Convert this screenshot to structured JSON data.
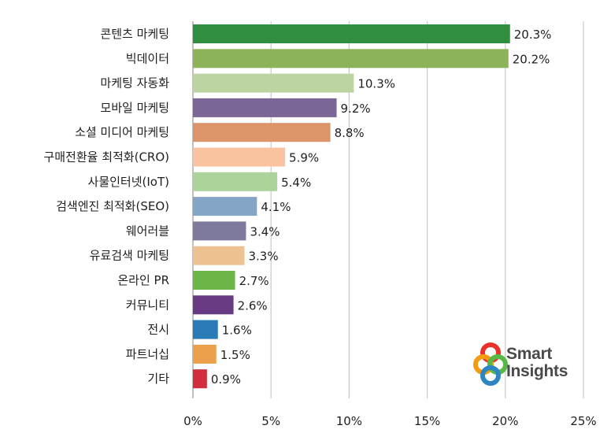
{
  "chart_data": {
    "type": "bar",
    "orientation": "horizontal",
    "categories": [
      "콘텐츠 마케팅",
      "빅데이터",
      "마케팅 자동화",
      "모바일 마케팅",
      "소셜 미디어 마케팅",
      "구매전환율 최적화(CRO)",
      "사물인터넷(IoT)",
      "검색엔진 최적화(SEO)",
      "웨어러블",
      "유료검색 마케팅",
      "온라인 PR",
      "커뮤니티",
      "전시",
      "파트너십",
      "기타"
    ],
    "values": [
      20.3,
      20.2,
      10.3,
      9.2,
      8.8,
      5.9,
      5.4,
      4.1,
      3.4,
      3.3,
      2.7,
      2.6,
      1.6,
      1.5,
      0.9
    ],
    "value_labels": [
      "20.3%",
      "20.2%",
      "10.3%",
      "9.2%",
      "8.8%",
      "5.9%",
      "5.4%",
      "4.1%",
      "3.4%",
      "3.3%",
      "2.7%",
      "2.6%",
      "1.6%",
      "1.5%",
      "0.9%"
    ],
    "colors": [
      "#2f8f3f",
      "#8db35a",
      "#bcd3a2",
      "#7b6797",
      "#dc9469",
      "#f9c39f",
      "#acd39a",
      "#85a5c6",
      "#7e7a9e",
      "#eec193",
      "#6cb548",
      "#683b82",
      "#2b7bb8",
      "#eda04c",
      "#d12d3d"
    ],
    "xlim": [
      0,
      25
    ],
    "x_ticks": [
      0,
      5,
      10,
      15,
      20,
      25
    ],
    "x_tick_labels": [
      "0%",
      "5%",
      "10%",
      "15%",
      "20%",
      "25%"
    ],
    "grid": "vertical",
    "title": "",
    "xlabel": "",
    "ylabel": ""
  },
  "logo": {
    "line1": "Smart",
    "line2": "Insights",
    "colors": [
      "#e8332a",
      "#f39c12",
      "#2e86c1",
      "#58b947"
    ]
  }
}
